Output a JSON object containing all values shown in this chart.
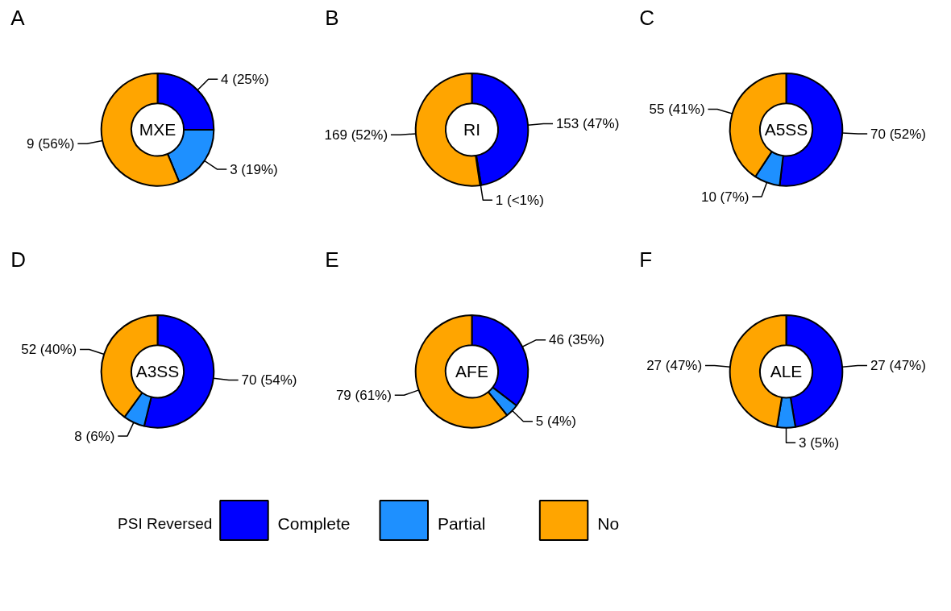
{
  "chart_data": [
    {
      "type": "donut",
      "title": "MXE",
      "annotations": [
        "A"
      ],
      "categories": [
        "Complete",
        "Partial",
        "No"
      ],
      "values": [
        4,
        3,
        9
      ],
      "colors": [
        "#0000ff",
        "#1e90ff",
        "#ffa500"
      ],
      "value_labels": [
        "4 (25%)",
        "3 (19%)",
        "9 (56%)"
      ],
      "legend": "bottom",
      "legend_title": "PSI Reversed"
    },
    {
      "type": "donut",
      "title": "RI",
      "annotations": [
        "B"
      ],
      "categories": [
        null,
        null,
        null
      ],
      "values": [
        153,
        1,
        169
      ],
      "colors": [
        "#0000ff",
        "#1e90ff",
        "#ffa500"
      ],
      "value_labels": [
        "153 (47%)",
        "1 (<1%)",
        "169 (52%)"
      ]
    },
    {
      "type": "donut",
      "title": "A5SS",
      "annotations": [
        "C"
      ],
      "categories": [
        null,
        null,
        null
      ],
      "values": [
        70,
        10,
        55
      ],
      "colors": [
        "#0000ff",
        "#1e90ff",
        "#ffa500"
      ],
      "value_labels": [
        "70 (52%)",
        "10 (7%)",
        "55 (41%)"
      ]
    },
    {
      "type": "donut",
      "title": "A3SS",
      "annotations": [
        "D"
      ],
      "categories": [
        null,
        null,
        null
      ],
      "values": [
        70,
        8,
        52
      ],
      "colors": [
        "#0000ff",
        "#1e90ff",
        "#ffa500"
      ],
      "value_labels": [
        "70 (54%)",
        "8 (6%)",
        "52 (40%)"
      ]
    },
    {
      "type": "donut",
      "title": "AFE",
      "annotations": [
        "E"
      ],
      "categories": [
        null,
        null,
        null
      ],
      "values": [
        46,
        5,
        79
      ],
      "colors": [
        "#0000ff",
        "#1e90ff",
        "#ffa500"
      ],
      "value_labels": [
        "46 (35%)",
        "5 (4%)",
        "79 (61%)"
      ]
    },
    {
      "type": "donut",
      "title": "ALE",
      "annotations": [
        "F"
      ],
      "categories": [
        null,
        null,
        null
      ],
      "values": [
        27,
        3,
        27
      ],
      "colors": [
        "#0000ff",
        "#1e90ff",
        "#ffa500"
      ],
      "value_labels": [
        "27 (47%)",
        "3 (5%)",
        "27 (47%)"
      ]
    }
  ]
}
